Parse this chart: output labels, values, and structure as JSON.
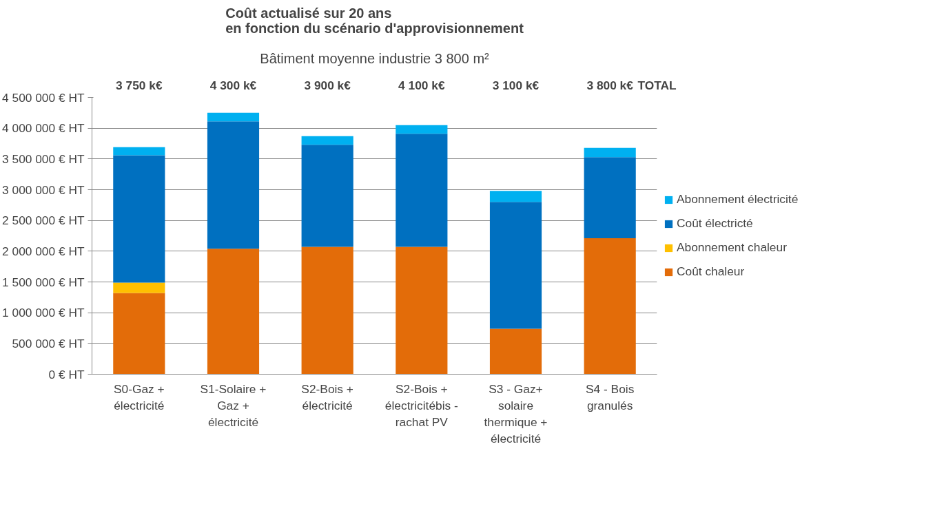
{
  "chart_data": {
    "type": "bar",
    "stacked": true,
    "title": "Coût actualisé sur 20 ans\nen fonction du scénario d'approvisionnement",
    "subtitle": "Bâtiment moyenne industrie 3 800 m²",
    "categories": [
      "S0-Gaz +\nélectricité",
      "S1-Solaire +\nGaz +\nélectricité",
      "S2-Bois +\nélectricité",
      "S2-Bois +\nélectricitébis -\nrachat PV",
      "S3 - Gaz+\nsolaire\nthermique +\nélectricité",
      "S4 - Bois\ngranulés"
    ],
    "series": [
      {
        "name": "Coût chaleur",
        "color": "#e36c09",
        "values": [
          1320000,
          2040000,
          2070000,
          2070000,
          740000,
          2210000
        ]
      },
      {
        "name": "Abonnement chaleur",
        "color": "#ffc000",
        "values": [
          170000,
          0,
          0,
          0,
          0,
          0
        ]
      },
      {
        "name": "Coût électricté",
        "color": "#0070c0",
        "values": [
          2070000,
          2070000,
          1660000,
          1840000,
          2060000,
          1320000
        ]
      },
      {
        "name": "Abonnement électricité",
        "color": "#00b0f0",
        "values": [
          130000,
          140000,
          140000,
          140000,
          180000,
          150000
        ]
      }
    ],
    "annotations": [
      "3 750 k€",
      "4 300 k€",
      "3 900 k€",
      "4 100 k€",
      "3 100 k€",
      "3 800 k€",
      "TOTAL"
    ],
    "ylim": [
      0,
      4500000
    ],
    "yticks": [
      {
        "value": 0,
        "label": "0 € HT"
      },
      {
        "value": 500000,
        "label": "500 000 € HT"
      },
      {
        "value": 1000000,
        "label": "1 000 000 € HT"
      },
      {
        "value": 1500000,
        "label": "1 500 000 € HT"
      },
      {
        "value": 2000000,
        "label": "2 000 000 € HT"
      },
      {
        "value": 2500000,
        "label": "2 500 000 € HT"
      },
      {
        "value": 3000000,
        "label": "3 000 000 € HT"
      },
      {
        "value": 3500000,
        "label": "3 500 000 € HT"
      },
      {
        "value": 4000000,
        "label": "4 000 000 € HT"
      },
      {
        "value": 4500000,
        "label": "4 500 000 € HT"
      }
    ],
    "grid": "y",
    "legend": "right"
  }
}
